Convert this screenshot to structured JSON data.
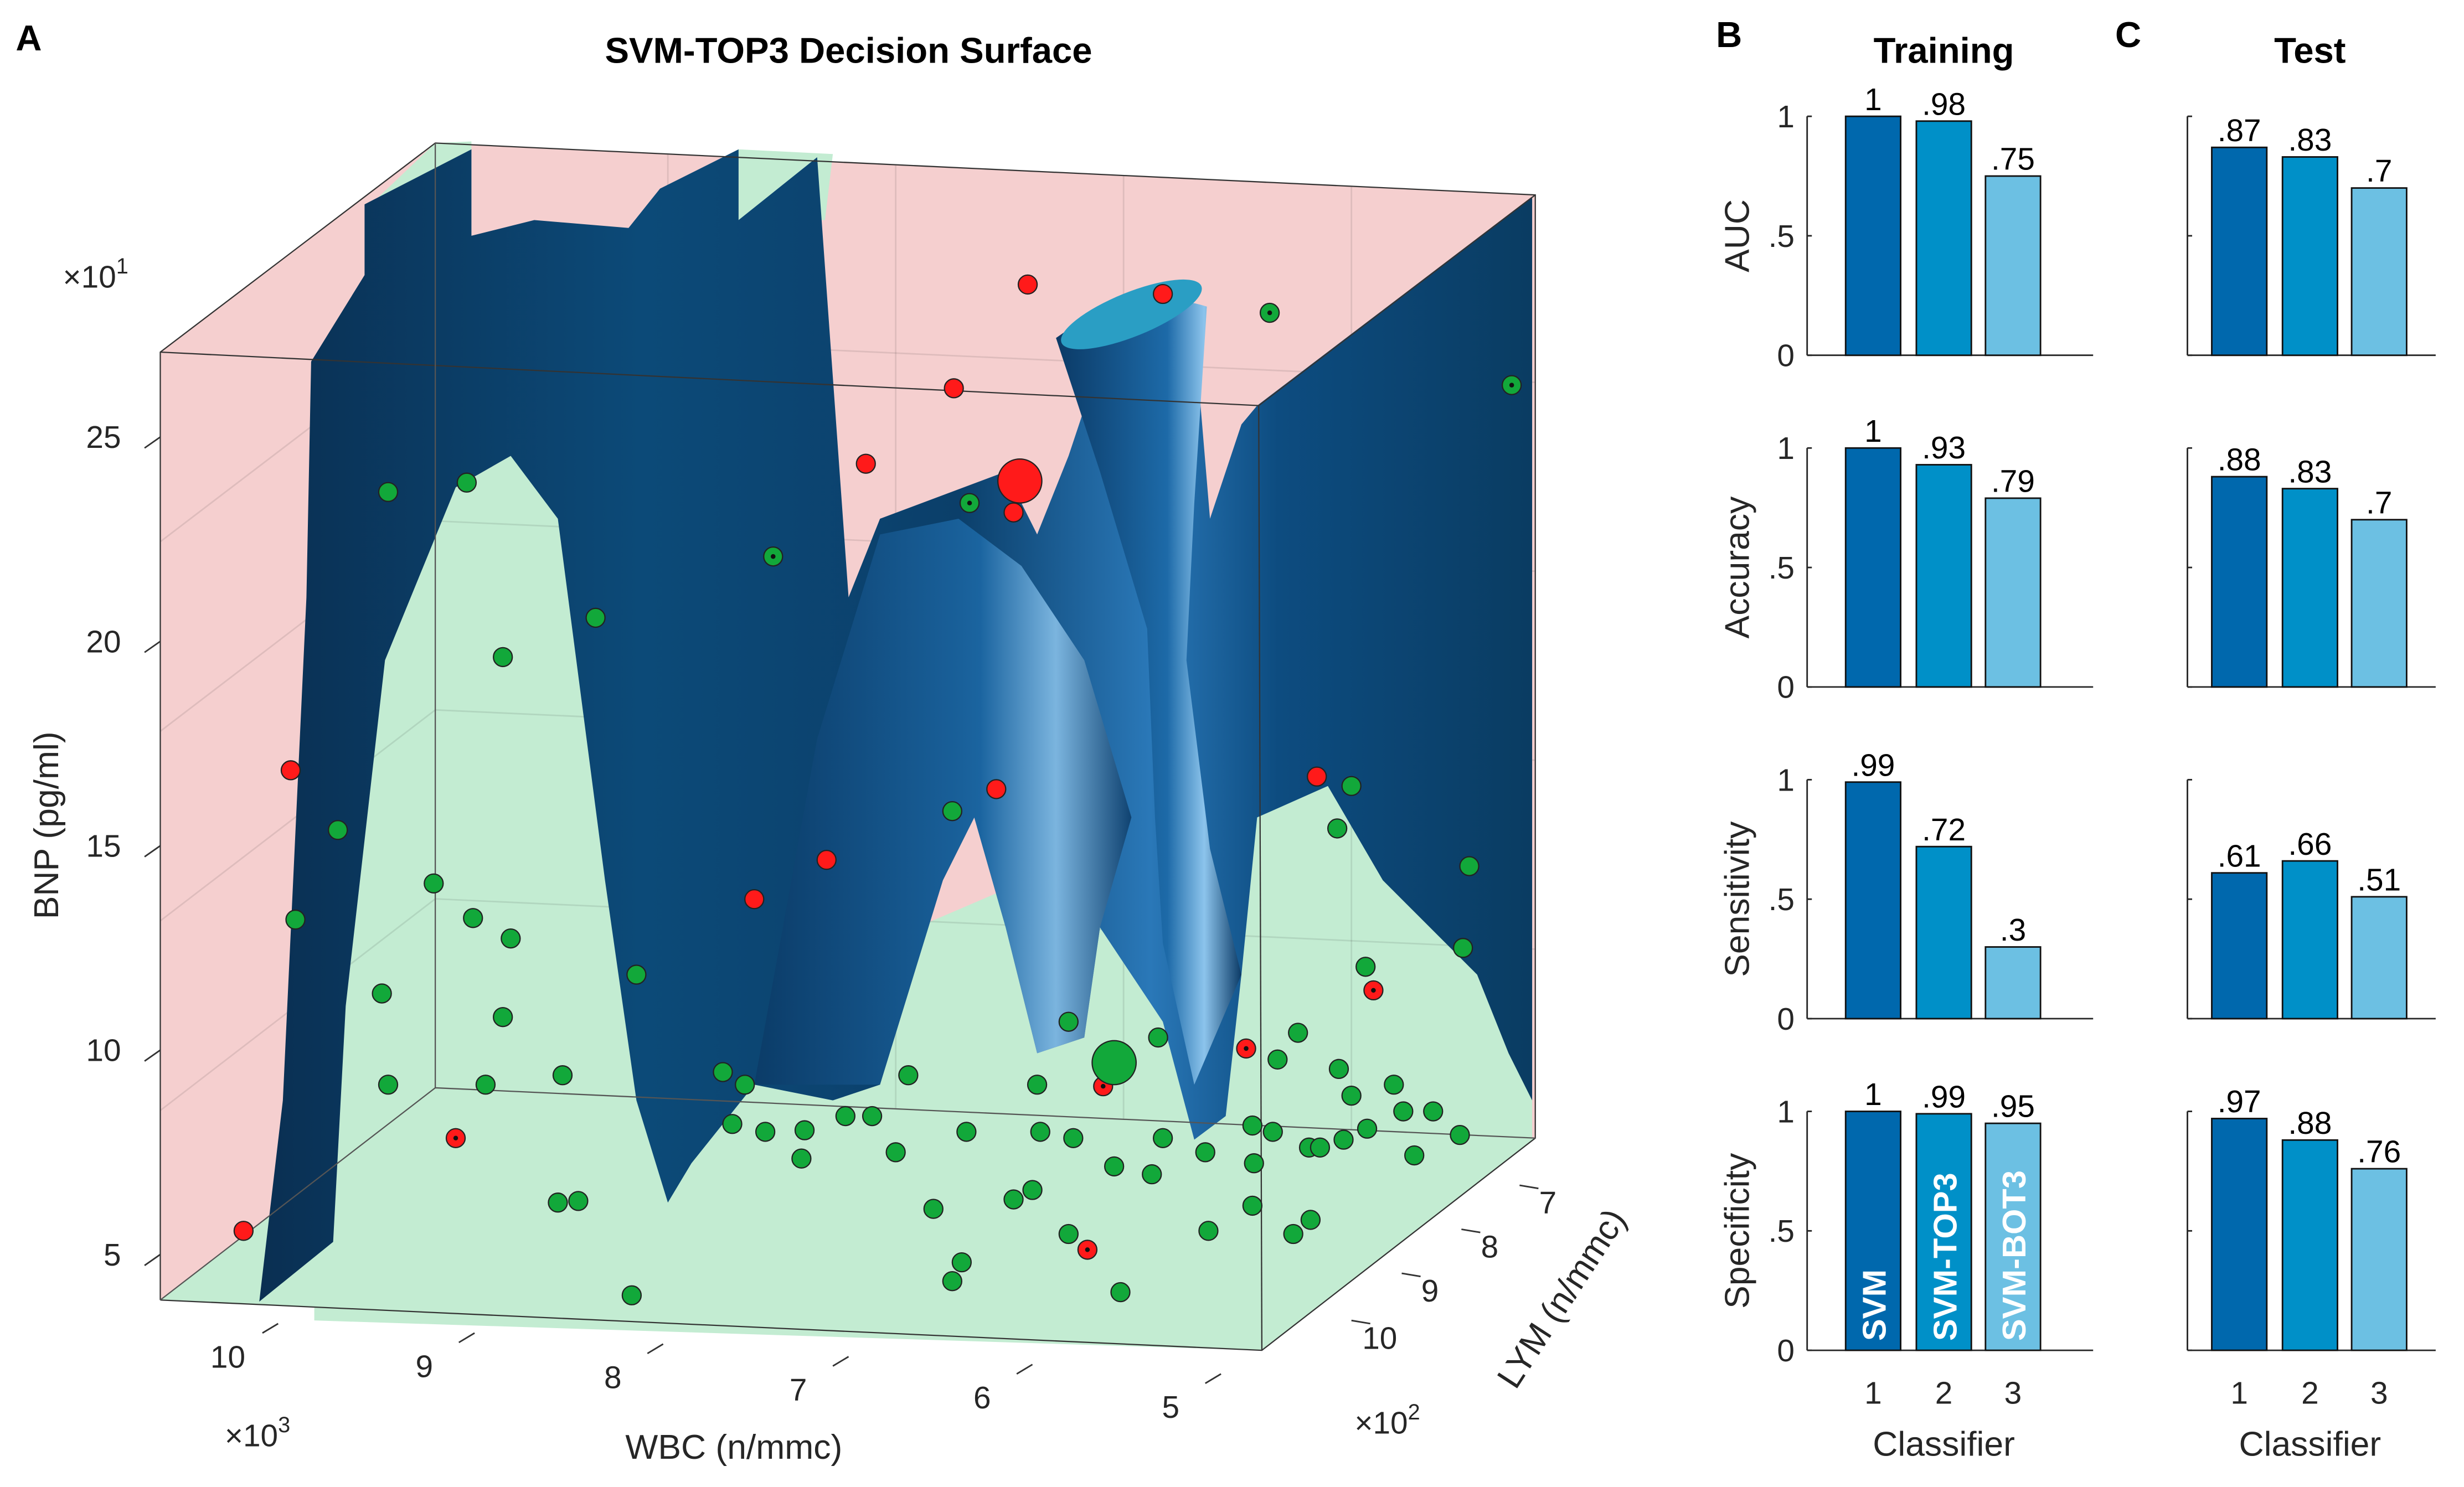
{
  "panel_letters": {
    "a": "A",
    "b": "B",
    "c": "C"
  },
  "colors": {
    "classifier_1": "#0068ad",
    "classifier_2": "#0090c8",
    "classifier_3": "#6cc0e3",
    "pink_region": "#f5cfcf",
    "green_region": "#c3ecd2",
    "surface": "#0b4672",
    "red_point": "#ff1a1a",
    "green_point": "#12a83a"
  },
  "chart_data": [
    {
      "type": "scatter",
      "title": "SVM-TOP3 Decision Surface",
      "xlabel": "WBC (n/mmc)",
      "x_ticks": [
        "10",
        "9",
        "8",
        "7",
        "6",
        "5"
      ],
      "x_multiplier": {
        "base": "×10",
        "exp": "3"
      },
      "ylabel": "LYM (n/mmc)",
      "y_ticks": [
        "7",
        "8",
        "9",
        "10"
      ],
      "y_multiplier": {
        "base": "×10",
        "exp": "2"
      },
      "zlabel": "BNP (pg/ml)",
      "z_ticks": [
        "25",
        "20",
        "15",
        "10",
        "5"
      ],
      "z_multiplier": {
        "base": "×10",
        "exp": "1"
      },
      "grid": true
    },
    {
      "type": "bar",
      "title": "Training",
      "xlabel": "Classifier",
      "categories": [
        "1",
        "2",
        "3"
      ],
      "bar_names": [
        "SVM",
        "SVM-TOP3",
        "SVM-BOT3"
      ],
      "y_ticks": [
        "1",
        ".5",
        "0"
      ],
      "ylim": [
        0,
        1
      ],
      "panels": [
        {
          "metric": "AUC",
          "values": [
            1,
            0.98,
            0.75
          ],
          "labels": [
            "1",
            ".98",
            ".75"
          ]
        },
        {
          "metric": "Accuracy",
          "values": [
            1,
            0.93,
            0.79
          ],
          "labels": [
            "1",
            ".93",
            ".79"
          ]
        },
        {
          "metric": "Sensitivity",
          "values": [
            0.99,
            0.72,
            0.3
          ],
          "labels": [
            ".99",
            ".72",
            ".3"
          ]
        },
        {
          "metric": "Specificity",
          "values": [
            1,
            0.99,
            0.95
          ],
          "labels": [
            "1",
            ".99",
            ".95"
          ]
        }
      ]
    },
    {
      "type": "bar",
      "title": "Test",
      "xlabel": "Classifier",
      "categories": [
        "1",
        "2",
        "3"
      ],
      "ylim": [
        0,
        1
      ],
      "panels": [
        {
          "metric": "AUC",
          "values": [
            0.87,
            0.83,
            0.7
          ],
          "labels": [
            ".87",
            ".83",
            ".7"
          ]
        },
        {
          "metric": "Accuracy",
          "values": [
            0.88,
            0.83,
            0.7
          ],
          "labels": [
            ".88",
            ".83",
            ".7"
          ]
        },
        {
          "metric": "Sensitivity",
          "values": [
            0.61,
            0.66,
            0.51
          ],
          "labels": [
            ".61",
            ".66",
            ".51"
          ]
        },
        {
          "metric": "Specificity",
          "values": [
            0.97,
            0.88,
            0.76
          ],
          "labels": [
            ".97",
            ".88",
            ".76"
          ]
        }
      ]
    }
  ]
}
